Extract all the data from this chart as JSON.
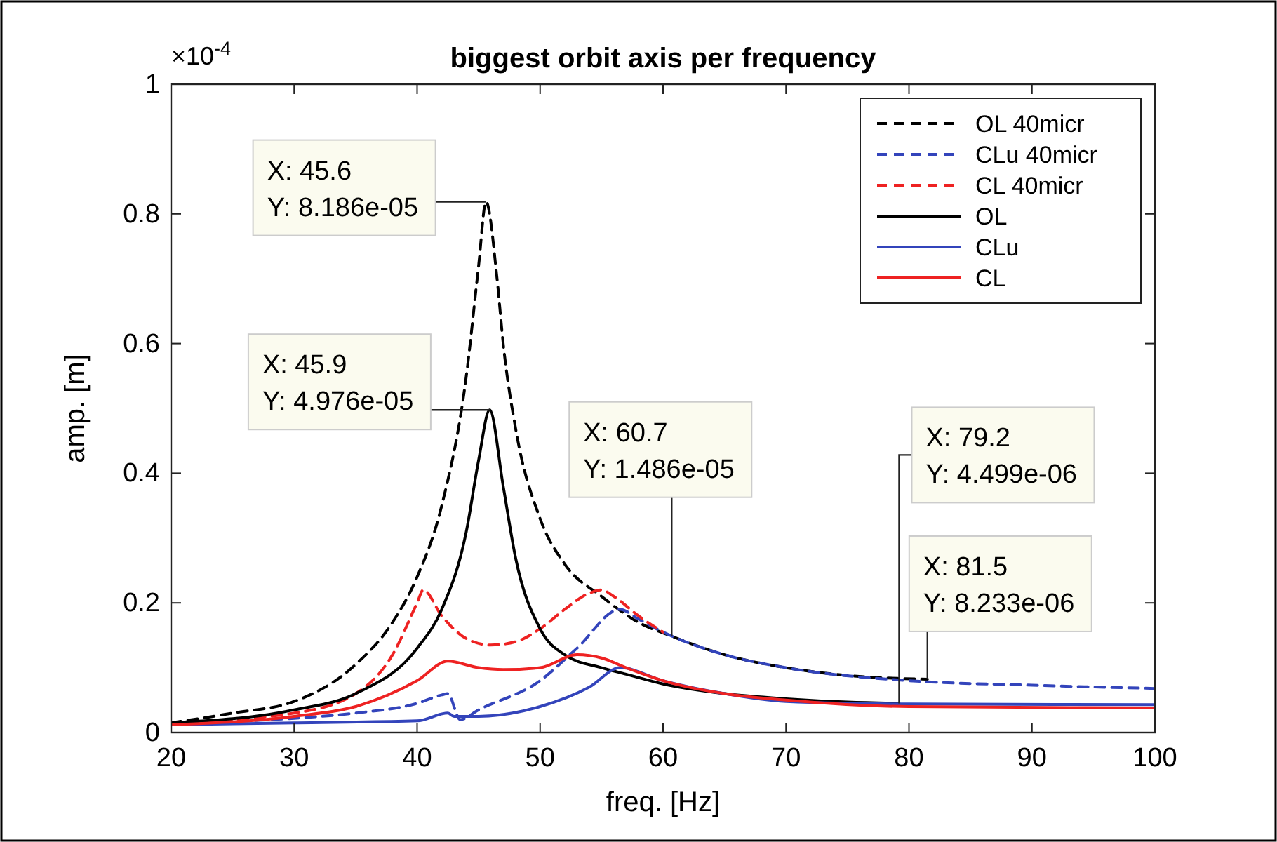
{
  "chart_data": {
    "type": "line",
    "title": "biggest orbit axis per frequency",
    "xlabel": "freq. [Hz]",
    "ylabel": "amp. [m]",
    "xlim": [
      20,
      100
    ],
    "xticks": [
      20,
      30,
      40,
      50,
      60,
      70,
      80,
      90,
      100
    ],
    "ylim": [
      0,
      1
    ],
    "yticks": [
      0,
      0.2,
      0.4,
      0.6,
      0.8,
      1
    ],
    "grid": false,
    "legend": "top right",
    "series": [
      {
        "name": "OL 40micr",
        "color": "#000000",
        "line_style": "dashed",
        "x": [
          20,
          25,
          30,
          35,
          38,
          40,
          42,
          44,
          45,
          45.6,
          46.5,
          47,
          48,
          50,
          52,
          55,
          58,
          60.7,
          65,
          70,
          75,
          81.5
        ],
        "values": [
          0.015,
          0.03,
          0.048,
          0.105,
          0.17,
          0.24,
          0.35,
          0.55,
          0.72,
          0.8186,
          0.7,
          0.6,
          0.47,
          0.33,
          0.26,
          0.21,
          0.17,
          0.1486,
          0.12,
          0.1,
          0.088,
          0.0823
        ]
      },
      {
        "name": "CLu 40micr",
        "color": "#3344bb",
        "line_style": "dashed",
        "x": [
          20,
          30,
          35,
          40,
          42,
          42.5,
          43.5,
          45,
          50,
          53,
          56.5,
          58,
          60,
          65,
          70,
          80,
          90,
          100
        ],
        "values": [
          0.015,
          0.022,
          0.03,
          0.045,
          0.058,
          0.06,
          0.02,
          0.035,
          0.08,
          0.13,
          0.19,
          0.175,
          0.155,
          0.12,
          0.1,
          0.08,
          0.073,
          0.068
        ]
      },
      {
        "name": "CL 40micr",
        "color": "#ee2222",
        "line_style": "dashed",
        "x": [
          20,
          30,
          35,
          38,
          40,
          40.5,
          42,
          44,
          46,
          48,
          50,
          52,
          54,
          55,
          56,
          58,
          60
        ],
        "values": [
          0.015,
          0.03,
          0.06,
          0.12,
          0.2,
          0.22,
          0.18,
          0.145,
          0.135,
          0.14,
          0.16,
          0.19,
          0.215,
          0.22,
          0.21,
          0.18,
          0.155
        ]
      },
      {
        "name": "OL",
        "color": "#000000",
        "line_style": "solid",
        "x": [
          20,
          30,
          35,
          40,
          42,
          44,
          45,
          45.9,
          47,
          48,
          50,
          52,
          55,
          57,
          60,
          65,
          70,
          75,
          79.2
        ],
        "values": [
          0.015,
          0.035,
          0.06,
          0.13,
          0.19,
          0.31,
          0.42,
          0.4976,
          0.38,
          0.27,
          0.16,
          0.12,
          0.1,
          0.09,
          0.075,
          0.06,
          0.052,
          0.047,
          0.045
        ]
      },
      {
        "name": "CLu",
        "color": "#3344bb",
        "line_style": "solid",
        "x": [
          20,
          30,
          40,
          42.5,
          43,
          45,
          50,
          54,
          56.5,
          60,
          65,
          70,
          80,
          100
        ],
        "values": [
          0.012,
          0.015,
          0.018,
          0.03,
          0.025,
          0.025,
          0.04,
          0.07,
          0.1,
          0.08,
          0.06,
          0.048,
          0.044,
          0.043
        ]
      },
      {
        "name": "CL",
        "color": "#ee2222",
        "line_style": "solid",
        "x": [
          20,
          30,
          35,
          40,
          42.5,
          45,
          47,
          50,
          53,
          55,
          57,
          60,
          65,
          70,
          80,
          100
        ],
        "values": [
          0.012,
          0.025,
          0.04,
          0.08,
          0.11,
          0.1,
          0.097,
          0.1,
          0.12,
          0.115,
          0.1,
          0.08,
          0.06,
          0.05,
          0.04,
          0.038
        ]
      }
    ],
    "annotations": [
      "×10$^{-4}$",
      {
        "text": "X: 45.6\nY: 8.186e-05",
        "x": 45.6,
        "y": 0.8186
      },
      {
        "text": "X: 45.9\nY: 4.976e-05",
        "x": 45.9,
        "y": 0.4976
      },
      {
        "text": "X: 60.7\nY: 1.486e-05",
        "x": 60.7,
        "y": 0.1486
      },
      {
        "text": "X: 79.2\nY: 4.499e-06",
        "x": 79.2,
        "y": 0.045
      },
      {
        "text": "X: 81.5\nY: 8.233e-06",
        "x": 81.5,
        "y": 0.0823
      }
    ]
  }
}
